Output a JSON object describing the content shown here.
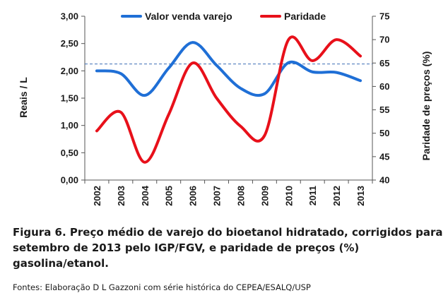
{
  "chart_data": {
    "type": "line",
    "categories": [
      "2002",
      "2003",
      "2004",
      "2005",
      "2006",
      "2007",
      "2008",
      "2009",
      "2010",
      "2011",
      "2012",
      "2013"
    ],
    "series": [
      {
        "name": "Valor venda varejo",
        "axis": "left",
        "color": "#1f6fd6",
        "values": [
          2.0,
          1.95,
          1.55,
          2.05,
          2.52,
          2.1,
          1.68,
          1.58,
          2.15,
          1.98,
          1.97,
          1.82
        ]
      },
      {
        "name": "Paridade",
        "axis": "right",
        "color": "#e8101a",
        "values": [
          50.5,
          54.5,
          43.8,
          54.0,
          65.0,
          57.5,
          51.5,
          49.5,
          70.0,
          65.5,
          70.0,
          66.5
        ]
      }
    ],
    "reference_line": {
      "axis": "right",
      "value": 64.8,
      "style": "dashed",
      "color": "#3d6fb6"
    },
    "y_left": {
      "label": "Reais / L",
      "ylim": [
        0,
        3
      ],
      "ticks": [
        "0,00",
        "0,50",
        "1,00",
        "1,50",
        "2,00",
        "2,50",
        "3,00"
      ]
    },
    "y_right": {
      "label": "Paridade de preços (%)",
      "ylim": [
        40,
        75
      ],
      "ticks": [
        "40",
        "45",
        "50",
        "55",
        "60",
        "65",
        "70",
        "75"
      ]
    },
    "legend": {
      "placement": "top"
    },
    "grid": false
  },
  "caption": "Figura 6. Preço médio de varejo do bioetanol hidratado, corrigidos para setembro de 2013 pelo IGP/FGV, e paridade de preços (%) gasolina/etanol.",
  "source": "Fontes: Elaboração D L Gazzoni com série histórica do CEPEA/ESALQ/USP"
}
